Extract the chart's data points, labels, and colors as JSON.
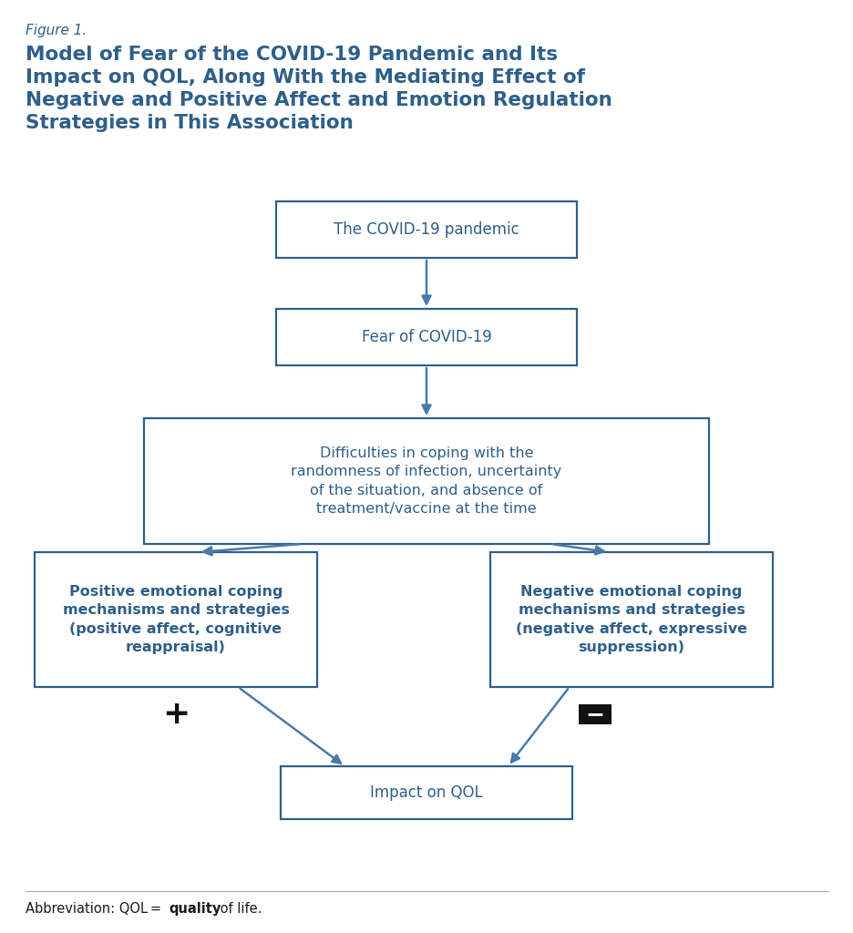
{
  "figure_label": "Figure 1.",
  "title_lines": "Model of Fear of the COVID-19 Pandemic and Its\nImpact on QOL, Along With the Mediating Effect of\nNegative and Positive Affect and Emotion Regulation\nStrategies in This Association",
  "box_edge_color": "#2e5f8a",
  "bg_color": "#ffffff",
  "text_color": "#2e5f8a",
  "dark_color": "#1a1a1a",
  "arrow_color": "#4a7aaa",
  "box1_text": "The COVID-19 pandemic",
  "box2_text": "Fear of COVID-19",
  "box3_text": "Difficulties in coping with the\nrandomness of infection, uncertainty\nof the situation, and absence of\ntreatment/vaccine at the time",
  "box4_text": "Positive emotional coping\nmechanisms and strategies\n(positive affect, cognitive\nreappraisal)",
  "box5_text": "Negative emotional coping\nmechanisms and strategies\n(negative affect, expressive\nsuppression)",
  "box6_text": "Impact on QOL",
  "abbr_prefix": "Abbreviation: QOL = ",
  "abbr_bold": "quality",
  "abbr_suffix": " of life."
}
